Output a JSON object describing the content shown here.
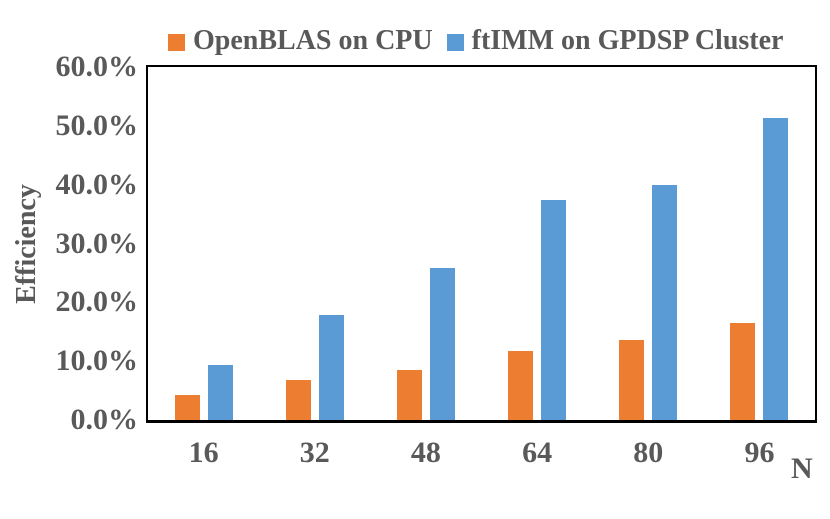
{
  "chart_data": {
    "type": "bar",
    "title": "",
    "categories": [
      "16",
      "32",
      "48",
      "64",
      "80",
      "96"
    ],
    "series": [
      {
        "name": "OpenBLAS on CPU",
        "color": "#ED7D31",
        "values": [
          4.3,
          6.8,
          8.5,
          11.8,
          13.6,
          16.5
        ]
      },
      {
        "name": "ftIMM on GPDSP Cluster",
        "color": "#5B9BD5",
        "values": [
          9.4,
          17.8,
          25.8,
          37.4,
          40.0,
          51.4
        ]
      }
    ],
    "xlabel": "N",
    "ylabel": "Efficiency",
    "ylim": [
      0,
      60
    ],
    "yticks": [
      "0.0%",
      "10.0%",
      "20.0%",
      "30.0%",
      "40.0%",
      "50.0%",
      "60.0%"
    ],
    "grid": false,
    "legend_position": "top-center"
  },
  "colors": {
    "text": "#595959",
    "axis_frame": "#000000",
    "background": "#FFFFFF"
  }
}
